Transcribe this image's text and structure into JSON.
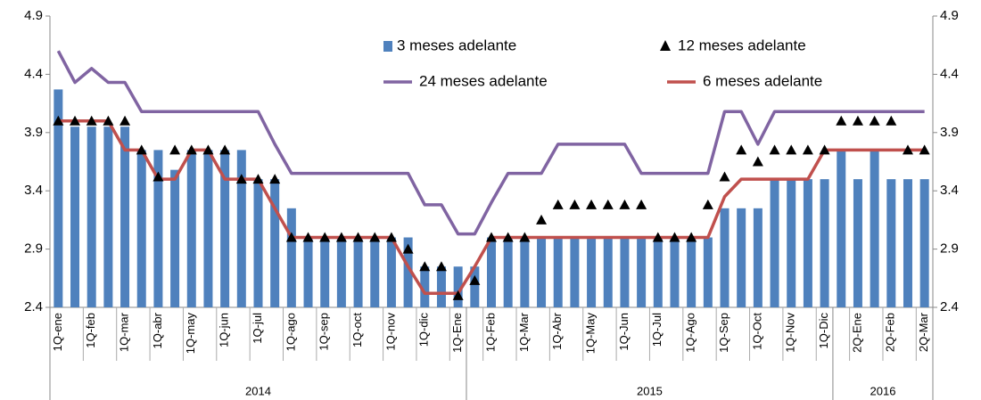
{
  "chart_data": {
    "type": "combo",
    "categories": [
      "1Q-ene",
      null,
      "1Q-feb",
      null,
      "1Q-mar",
      null,
      "1Q-abr",
      null,
      "1Q-may",
      null,
      "1Q-jun",
      null,
      "1Q-jul",
      null,
      "1Q-ago",
      null,
      "1Q-sep",
      null,
      "1Q-oct",
      null,
      "1Q-nov",
      null,
      "1Q-dic",
      null,
      "1Q-Ene",
      null,
      "1Q-Feb",
      null,
      "1Q-Mar",
      null,
      "1Q-Abr",
      null,
      "1Q-May",
      null,
      "1Q-Jun",
      null,
      "1Q-Jul",
      null,
      "1Q-Ago",
      null,
      "1Q-Sep",
      null,
      "1Q-Oct",
      null,
      "1Q-Nov",
      null,
      "1Q-Dic",
      null,
      "2Q-Ene",
      null,
      "2Q-Feb",
      null,
      "2Q-Mar"
    ],
    "groups": [
      {
        "name": "2014",
        "count": 25
      },
      {
        "name": "2015",
        "count": 22
      },
      {
        "name": "2016",
        "count": 6
      }
    ],
    "ylim": [
      2.4,
      4.9
    ],
    "yticks": [
      2.4,
      2.9,
      3.4,
      3.9,
      4.4,
      4.9
    ],
    "series": [
      {
        "name": "3 meses adelante",
        "type": "bar",
        "color": "#4f81bd",
        "values": [
          4.27,
          3.95,
          3.95,
          3.95,
          3.95,
          3.75,
          3.75,
          3.58,
          3.75,
          3.75,
          3.75,
          3.75,
          3.5,
          3.5,
          3.25,
          3.0,
          3.0,
          3.0,
          3.0,
          3.0,
          3.0,
          3.0,
          2.75,
          2.75,
          2.75,
          2.75,
          3.0,
          3.0,
          3.0,
          3.0,
          3.0,
          3.0,
          3.0,
          3.0,
          3.0,
          3.0,
          3.0,
          3.0,
          3.0,
          3.0,
          3.25,
          3.25,
          3.25,
          3.5,
          3.5,
          3.5,
          3.5,
          3.75,
          3.5,
          3.75,
          3.5,
          3.5,
          3.5
        ]
      },
      {
        "name": "12 meses adelante",
        "type": "scatter",
        "color": "#000000",
        "values": [
          4.0,
          4.0,
          4.0,
          4.0,
          4.0,
          3.75,
          3.52,
          3.75,
          3.75,
          3.75,
          3.75,
          3.5,
          3.5,
          3.5,
          3.0,
          3.0,
          3.0,
          3.0,
          3.0,
          3.0,
          3.0,
          2.9,
          2.75,
          2.75,
          2.5,
          2.63,
          3.0,
          3.0,
          3.0,
          3.15,
          3.28,
          3.28,
          3.28,
          3.28,
          3.28,
          3.28,
          3.0,
          3.0,
          3.0,
          3.28,
          3.52,
          3.75,
          3.65,
          3.75,
          3.75,
          3.75,
          3.75,
          4.0,
          4.0,
          4.0,
          4.0,
          3.75,
          3.75
        ]
      },
      {
        "name": "24 meses adelante",
        "type": "line",
        "color": "#8064a2",
        "values": [
          4.6,
          4.33,
          4.45,
          4.33,
          4.33,
          4.08,
          4.08,
          4.08,
          4.08,
          4.08,
          4.08,
          4.08,
          4.08,
          3.8,
          3.55,
          3.55,
          3.55,
          3.55,
          3.55,
          3.55,
          3.55,
          3.55,
          3.28,
          3.28,
          3.03,
          3.03,
          3.3,
          3.55,
          3.55,
          3.55,
          3.8,
          3.8,
          3.8,
          3.8,
          3.8,
          3.55,
          3.55,
          3.55,
          3.55,
          3.55,
          4.08,
          4.08,
          3.8,
          4.08,
          4.08,
          4.08,
          4.08,
          4.08,
          4.08,
          4.08,
          4.08,
          4.08,
          4.08
        ]
      },
      {
        "name": "6 meses adelante",
        "type": "line",
        "color": "#c0504d",
        "values": [
          4.0,
          4.0,
          4.0,
          4.0,
          3.75,
          3.75,
          3.5,
          3.5,
          3.75,
          3.75,
          3.5,
          3.5,
          3.5,
          3.25,
          3.0,
          3.0,
          3.0,
          3.0,
          3.0,
          3.0,
          3.0,
          2.75,
          2.52,
          2.52,
          2.52,
          2.75,
          3.0,
          3.0,
          3.0,
          3.0,
          3.0,
          3.0,
          3.0,
          3.0,
          3.0,
          3.0,
          3.0,
          3.0,
          3.0,
          3.0,
          3.35,
          3.5,
          3.5,
          3.5,
          3.5,
          3.5,
          3.75,
          3.75,
          3.75,
          3.75,
          3.75,
          3.75,
          3.75
        ]
      }
    ]
  }
}
